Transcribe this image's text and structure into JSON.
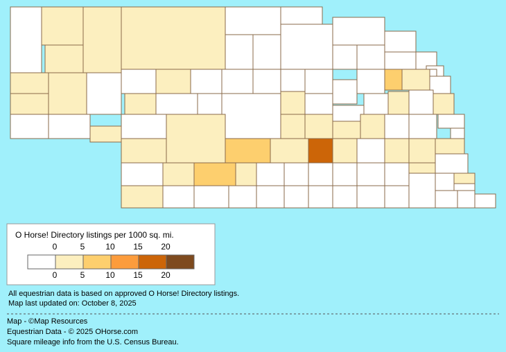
{
  "map": {
    "county_density": [
      0,
      2.5,
      2.5,
      2.5,
      2.5,
      2.5,
      2.5,
      0,
      0,
      0,
      2.5,
      2.5,
      0,
      0,
      0,
      0,
      0,
      0,
      0,
      0,
      0,
      0,
      0,
      0,
      0,
      0,
      2.5,
      0,
      0,
      0,
      0,
      0,
      0,
      0,
      7.5,
      2.5,
      0,
      2.5,
      0,
      0,
      0,
      2.5,
      0,
      0,
      0,
      2.5,
      0,
      2.5,
      0,
      2.5,
      2.5,
      2.5,
      2.5,
      2.5,
      0,
      0,
      0,
      0,
      2.5,
      7.5,
      2.5,
      17.5,
      2.5,
      0,
      2.5,
      2.5,
      2.5,
      0,
      0,
      2.5,
      7.5,
      2.5,
      0,
      0,
      0,
      0,
      0,
      0,
      0,
      2.5,
      2.5,
      0,
      0,
      0,
      0,
      0,
      0,
      0,
      0,
      0,
      0,
      0,
      0,
      0,
      0,
      2.5,
      0,
      0,
      0,
      0
    ]
  },
  "legend": {
    "title": "O Horse! Directory listings per 1000 sq. mi.",
    "thresholds": [
      0,
      5,
      10,
      15,
      20
    ],
    "colors": [
      "#ffffff",
      "#fcefbf",
      "#fdcf6e",
      "#fc9c3c",
      "#cc6508",
      "#7e4a1e"
    ]
  },
  "notes": [
    "All equestrian data is based on approved O Horse! Directory listings.",
    "Map last updated on: October 8, 2025"
  ],
  "credits": [
    "Map - ©Map Resources",
    "Equestrian Data - © 2025 OHorse.com",
    "Square mileage info from the U.S. Census Bureau."
  ]
}
